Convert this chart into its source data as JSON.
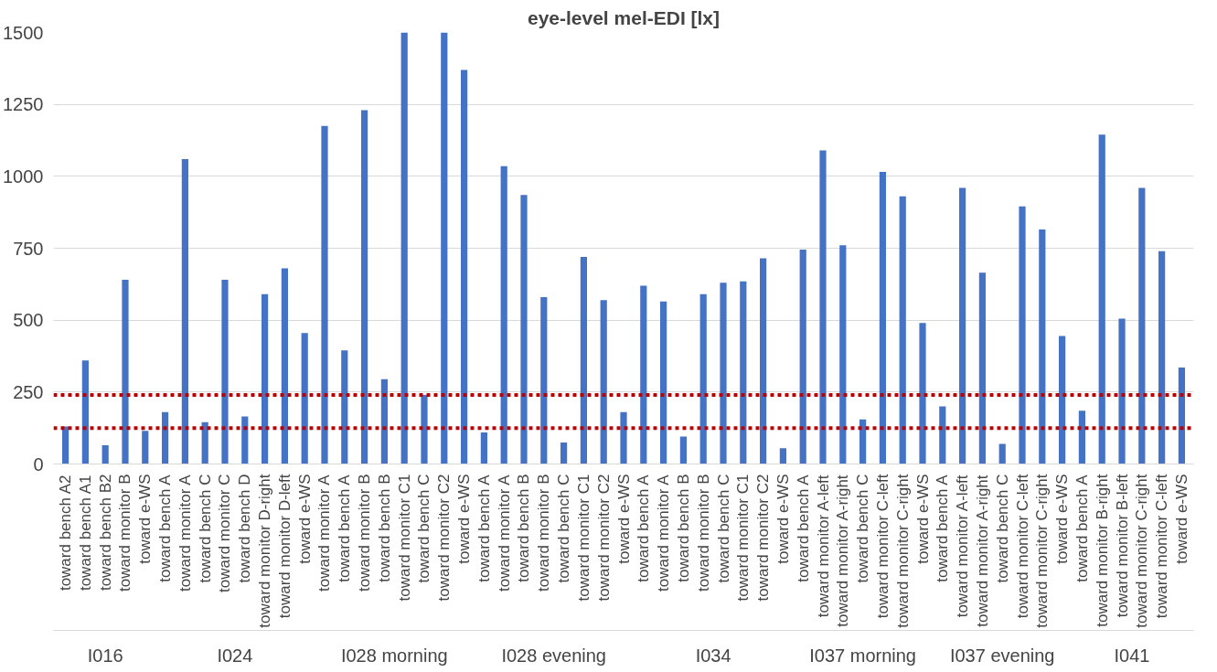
{
  "chart_data": {
    "type": "bar",
    "title": "eye-level mel-EDI [lx]",
    "categories": [
      [
        "I016",
        "toward bench A2"
      ],
      [
        null,
        "toward bench A1"
      ],
      [
        null,
        "toward bench B2"
      ],
      [
        null,
        "toward monitor B"
      ],
      [
        null,
        "toward e-WS"
      ],
      [
        "I024",
        "toward bench A"
      ],
      [
        null,
        "toward monitor A"
      ],
      [
        null,
        "toward bench C"
      ],
      [
        null,
        "toward monitor C"
      ],
      [
        null,
        "toward bench D"
      ],
      [
        null,
        "toward monitor D-right"
      ],
      [
        null,
        "toward monitor D-left"
      ],
      [
        null,
        "toward e-WS"
      ],
      [
        "I028 morning",
        "toward monitor A"
      ],
      [
        null,
        "toward bench A"
      ],
      [
        null,
        "toward monitor B"
      ],
      [
        null,
        "toward bench B"
      ],
      [
        null,
        "toward monitor C1"
      ],
      [
        null,
        "toward bench C"
      ],
      [
        null,
        "toward monitor C2"
      ],
      [
        null,
        "toward e-WS"
      ],
      [
        "I028 evening",
        "toward bench A"
      ],
      [
        null,
        "toward monitor A"
      ],
      [
        null,
        "toward bench B"
      ],
      [
        null,
        "toward monitor B"
      ],
      [
        null,
        "toward bench C"
      ],
      [
        null,
        "toward monitor C1"
      ],
      [
        null,
        "toward monitor C2"
      ],
      [
        null,
        "toward e-WS"
      ],
      [
        "I034",
        "toward bench A"
      ],
      [
        null,
        "toward monitor A"
      ],
      [
        null,
        "toward bench B"
      ],
      [
        null,
        "toward monitor B"
      ],
      [
        null,
        "toward bench C"
      ],
      [
        null,
        "toward monitor C1"
      ],
      [
        null,
        "toward monitor C2"
      ],
      [
        null,
        "toward e-WS"
      ],
      [
        "I037 morning",
        "toward bench A"
      ],
      [
        null,
        "toward monitor A-left"
      ],
      [
        null,
        "toward monitor A-right"
      ],
      [
        null,
        "toward bench C"
      ],
      [
        null,
        "toward monitor C-left"
      ],
      [
        null,
        "toward monitor C-right"
      ],
      [
        null,
        "toward e-WS"
      ],
      [
        "I037 evening",
        "toward bench A"
      ],
      [
        null,
        "toward monitor A-left"
      ],
      [
        null,
        "toward monitor A-right"
      ],
      [
        null,
        "toward bench C"
      ],
      [
        null,
        "toward monitor C-left"
      ],
      [
        null,
        "toward monitor C-right"
      ],
      [
        null,
        "toward e-WS"
      ],
      [
        "I041",
        "toward bench A"
      ],
      [
        null,
        "toward monitor B-right"
      ],
      [
        null,
        "toward monitor B-left"
      ],
      [
        null,
        "toward monitor C-right"
      ],
      [
        null,
        "toward monitor C-left"
      ],
      [
        null,
        "toward e-WS"
      ]
    ],
    "values": [
      130,
      360,
      65,
      640,
      115,
      180,
      1060,
      145,
      640,
      165,
      590,
      680,
      455,
      1175,
      395,
      1230,
      295,
      1500,
      240,
      1500,
      1370,
      110,
      1035,
      935,
      580,
      75,
      720,
      570,
      180,
      620,
      565,
      95,
      590,
      630,
      635,
      715,
      55,
      745,
      1090,
      760,
      155,
      1015,
      930,
      490,
      200,
      960,
      665,
      70,
      895,
      815,
      445,
      185,
      1145,
      505,
      960,
      740,
      335
    ],
    "color": "#4472c4",
    "ylim": [
      0,
      1500
    ],
    "yticks": [
      0,
      250,
      500,
      750,
      1000,
      1250,
      1500
    ],
    "grid": "y",
    "ref_lines": [
      {
        "axis": "y",
        "value": 240,
        "color": "#c00000",
        "line_style": "dotted"
      },
      {
        "axis": "y",
        "value": 125,
        "color": "#c00000",
        "line_style": "dotted"
      }
    ]
  }
}
